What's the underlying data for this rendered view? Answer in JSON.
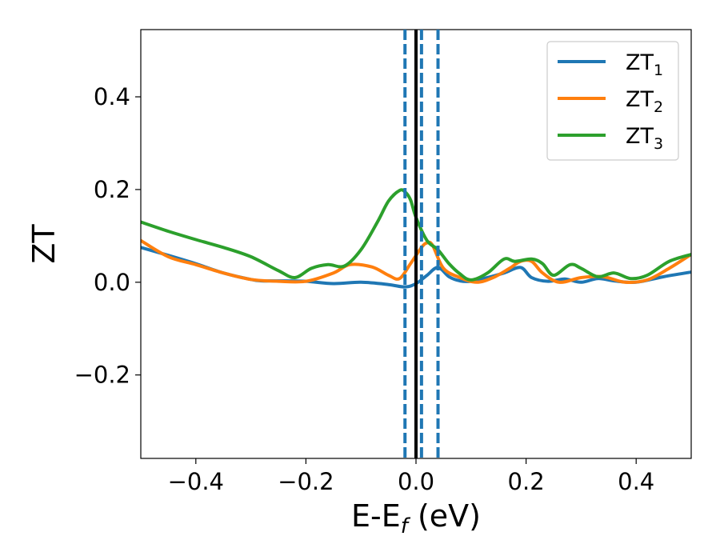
{
  "chart_data": {
    "type": "line",
    "xlabel": "E-E_f (eV)",
    "xlabel_parts": {
      "pre": "E-E",
      "sub": "f",
      "post": " (eV)"
    },
    "ylabel": "ZT",
    "xlim": [
      -0.5,
      0.5
    ],
    "ylim": [
      -0.38,
      0.545
    ],
    "xticks": [
      -0.4,
      -0.2,
      0.0,
      0.2,
      0.4
    ],
    "xtick_labels": [
      "−0.4",
      "−0.2",
      "0.0",
      "0.2",
      "0.4"
    ],
    "yticks": [
      -0.2,
      0.0,
      0.2,
      0.4
    ],
    "ytick_labels": [
      "−0.2",
      "0.0",
      "0.2",
      "0.4"
    ],
    "grid": false,
    "legend_position": "top-right",
    "vertical_lines": [
      {
        "x": -0.02,
        "style": "dashed",
        "color": "#1f77b4"
      },
      {
        "x": 0.0,
        "style": "solid",
        "color": "#000000"
      },
      {
        "x": 0.01,
        "style": "dashed",
        "color": "#1f77b4"
      },
      {
        "x": 0.04,
        "style": "dashed",
        "color": "#1f77b4"
      }
    ],
    "series": [
      {
        "name": "ZT_1",
        "label_base": "ZT",
        "label_sub": "1",
        "color": "#1f77b4",
        "x": [
          -0.5,
          -0.45,
          -0.4,
          -0.35,
          -0.3,
          -0.28,
          -0.25,
          -0.2,
          -0.15,
          -0.1,
          -0.05,
          -0.02,
          0.0,
          0.02,
          0.04,
          0.06,
          0.08,
          0.1,
          0.13,
          0.16,
          0.19,
          0.21,
          0.24,
          0.27,
          0.3,
          0.33,
          0.36,
          0.4,
          0.45,
          0.5
        ],
        "y": [
          0.075,
          0.058,
          0.04,
          0.02,
          0.006,
          0.003,
          0.003,
          0.002,
          -0.003,
          0.0,
          -0.005,
          -0.01,
          -0.003,
          0.015,
          0.032,
          0.012,
          0.003,
          0.002,
          0.01,
          0.02,
          0.032,
          0.01,
          0.002,
          0.007,
          0.0,
          0.008,
          0.003,
          0.0,
          0.012,
          0.022
        ]
      },
      {
        "name": "ZT_2",
        "label_base": "ZT",
        "label_sub": "2",
        "color": "#ff7f0e",
        "x": [
          -0.5,
          -0.45,
          -0.4,
          -0.35,
          -0.3,
          -0.25,
          -0.2,
          -0.15,
          -0.12,
          -0.08,
          -0.05,
          -0.03,
          -0.01,
          0.01,
          0.02,
          0.03,
          0.05,
          0.08,
          0.11,
          0.14,
          0.17,
          0.19,
          0.21,
          0.23,
          0.26,
          0.3,
          0.34,
          0.38,
          0.42,
          0.46,
          0.5
        ],
        "y": [
          0.09,
          0.055,
          0.038,
          0.02,
          0.006,
          0.002,
          0.002,
          0.02,
          0.038,
          0.033,
          0.015,
          0.008,
          0.04,
          0.075,
          0.085,
          0.08,
          0.03,
          0.01,
          0.0,
          0.01,
          0.03,
          0.045,
          0.045,
          0.02,
          0.0,
          0.01,
          0.012,
          0.0,
          0.005,
          0.03,
          0.06
        ]
      },
      {
        "name": "ZT_3",
        "label_base": "ZT",
        "label_sub": "3",
        "color": "#2ca02c",
        "x": [
          -0.5,
          -0.45,
          -0.4,
          -0.35,
          -0.3,
          -0.25,
          -0.22,
          -0.19,
          -0.16,
          -0.13,
          -0.1,
          -0.07,
          -0.05,
          -0.03,
          -0.02,
          -0.01,
          0.0,
          0.02,
          0.04,
          0.06,
          0.08,
          0.1,
          0.13,
          0.16,
          0.18,
          0.21,
          0.23,
          0.25,
          0.28,
          0.3,
          0.33,
          0.36,
          0.39,
          0.42,
          0.46,
          0.5
        ],
        "y": [
          0.13,
          0.11,
          0.092,
          0.075,
          0.055,
          0.025,
          0.01,
          0.03,
          0.038,
          0.035,
          0.07,
          0.13,
          0.175,
          0.198,
          0.195,
          0.178,
          0.14,
          0.09,
          0.07,
          0.04,
          0.018,
          0.005,
          0.02,
          0.05,
          0.045,
          0.05,
          0.04,
          0.015,
          0.038,
          0.03,
          0.012,
          0.02,
          0.008,
          0.015,
          0.045,
          0.06
        ]
      }
    ]
  }
}
